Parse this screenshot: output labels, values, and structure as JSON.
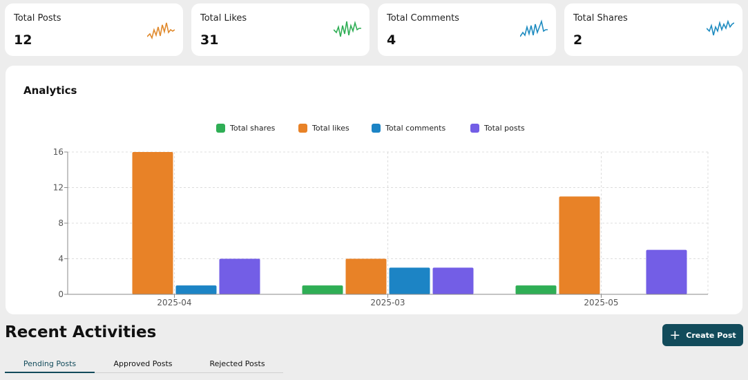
{
  "stats": [
    {
      "label": "Total Posts",
      "value": "12",
      "color": "#e0892c"
    },
    {
      "label": "Total Likes",
      "value": "31",
      "color": "#2fae55"
    },
    {
      "label": "Total Comments",
      "value": "4",
      "color": "#1d8bc0"
    },
    {
      "label": "Total Shares",
      "value": "2",
      "color": "#1d8bc0"
    }
  ],
  "analytics": {
    "title": "Analytics",
    "chart_data": {
      "type": "bar",
      "title": "Analytics",
      "categories": [
        "2025-04",
        "2025-03",
        "2025-05"
      ],
      "series": [
        {
          "name": "Total shares",
          "color": "#2fae55",
          "values": [
            0,
            1,
            1
          ]
        },
        {
          "name": "Total likes",
          "color": "#e88227",
          "values": [
            16,
            4,
            11
          ]
        },
        {
          "name": "Total comments",
          "color": "#1c84c5",
          "values": [
            1,
            3,
            0
          ]
        },
        {
          "name": "Total posts",
          "color": "#735ee6",
          "values": [
            4,
            3,
            5
          ]
        }
      ],
      "yticks": [
        0,
        4,
        8,
        12,
        16
      ],
      "ylim": [
        0,
        16
      ],
      "legend": "top-center",
      "grid": true
    }
  },
  "recent": {
    "title": "Recent Activities",
    "create_label": "Create Post",
    "tabs": [
      "Pending Posts",
      "Approved Posts",
      "Rejected Posts"
    ]
  }
}
